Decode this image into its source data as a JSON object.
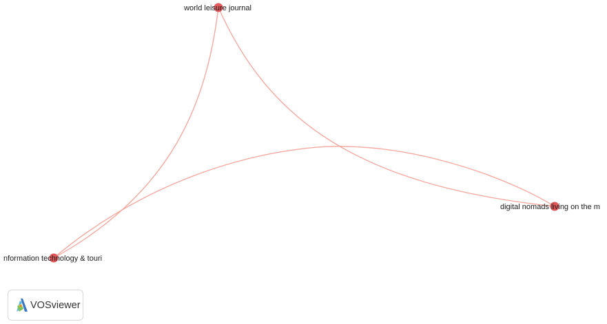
{
  "nodes": [
    {
      "id": "wlj",
      "label": "world leisure journal"
    },
    {
      "id": "dn",
      "label": "digital nomads living on the m"
    },
    {
      "id": "itt",
      "label": "nformation technology & touri"
    }
  ],
  "links": [
    {
      "from": "wlj",
      "to": "itt"
    },
    {
      "from": "wlj",
      "to": "dn"
    },
    {
      "from": "itt",
      "to": "dn"
    }
  ],
  "colors": {
    "node": "#e0585a",
    "link": "#f4a9a0"
  },
  "logo": {
    "text": "VOSviewer",
    "icon": "vosviewer-logo-icon"
  }
}
